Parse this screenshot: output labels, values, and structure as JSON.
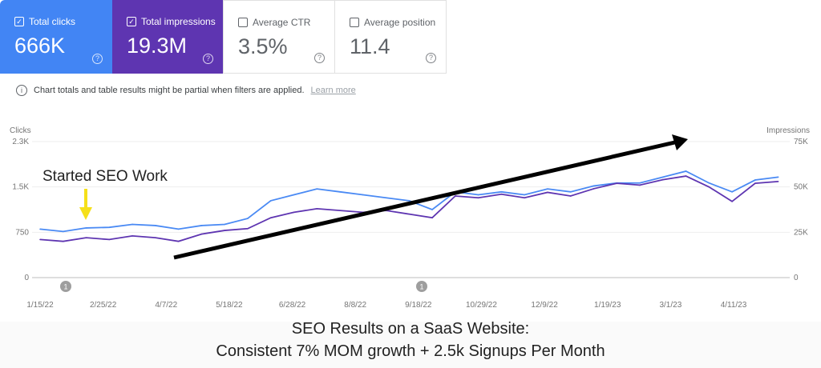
{
  "cards": [
    {
      "label": "Total clicks",
      "value": "666K",
      "checked": true,
      "color": "#4285f4"
    },
    {
      "label": "Total impressions",
      "value": "19.3M",
      "checked": true,
      "color": "#5e35b1"
    },
    {
      "label": "Average CTR",
      "value": "3.5%",
      "checked": false
    },
    {
      "label": "Average position",
      "value": "11.4",
      "checked": false
    }
  ],
  "notice": {
    "text": "Chart totals and table results might be partial when filters are applied.",
    "link": "Learn more"
  },
  "annotation_text": "Started SEO Work",
  "annotation_markers": [
    "1",
    "1"
  ],
  "caption": {
    "line1": "SEO Results on a SaaS Website:",
    "line2": "Consistent 7% MOM growth + 2.5k Signups Per Month"
  },
  "chart_data": {
    "type": "line",
    "ylabel_left": "Clicks",
    "ylabel_right": "Impressions",
    "yticks_left": [
      "0",
      "750",
      "1.5K",
      "2.3K"
    ],
    "ylim_left": [
      0,
      2300
    ],
    "yticks_right": [
      "0",
      "25K",
      "50K",
      "75K"
    ],
    "ylim_right": [
      0,
      75000
    ],
    "xticks": [
      "1/15/22",
      "2/25/22",
      "4/7/22",
      "5/18/22",
      "6/28/22",
      "8/8/22",
      "9/18/22",
      "10/29/22",
      "12/9/22",
      "1/19/23",
      "3/1/23",
      "4/11/23"
    ],
    "grid": true,
    "x": [
      "2022-01-15",
      "2022-01-30",
      "2022-02-14",
      "2022-03-01",
      "2022-03-16",
      "2022-03-31",
      "2022-04-15",
      "2022-04-30",
      "2022-05-15",
      "2022-05-30",
      "2022-06-14",
      "2022-06-29",
      "2022-07-14",
      "2022-07-29",
      "2022-08-13",
      "2022-08-28",
      "2022-09-12",
      "2022-09-27",
      "2022-10-12",
      "2022-10-27",
      "2022-11-11",
      "2022-11-26",
      "2022-12-11",
      "2022-12-26",
      "2023-01-10",
      "2023-01-25",
      "2023-02-09",
      "2023-02-24",
      "2023-03-11",
      "2023-03-26",
      "2023-04-10",
      "2023-04-25",
      "2023-05-10"
    ],
    "series": [
      {
        "name": "Clicks",
        "axis": "left",
        "color": "#4a8af4",
        "values": [
          820,
          780,
          840,
          850,
          900,
          880,
          820,
          880,
          900,
          1000,
          1300,
          1400,
          1500,
          1450,
          1400,
          1350,
          1300,
          1150,
          1450,
          1400,
          1450,
          1400,
          1500,
          1450,
          1550,
          1600,
          1600,
          1700,
          1800,
          1600,
          1450,
          1650,
          1700
        ]
      },
      {
        "name": "Impressions",
        "axis": "right",
        "color": "#5e35b1",
        "values": [
          21000,
          20000,
          22000,
          21000,
          23000,
          22000,
          20000,
          24000,
          26000,
          27000,
          33000,
          36000,
          38000,
          37000,
          36000,
          37000,
          35000,
          33000,
          45000,
          44000,
          46000,
          44000,
          47000,
          45000,
          49000,
          52000,
          51000,
          54000,
          56000,
          50000,
          42000,
          52000,
          53000
        ]
      }
    ]
  }
}
